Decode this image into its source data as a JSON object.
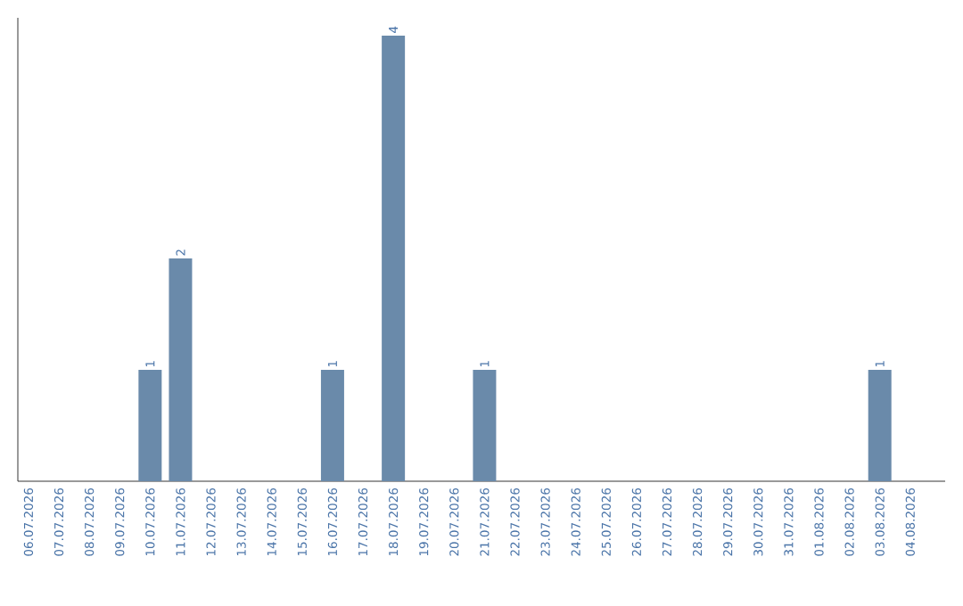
{
  "chart_data": {
    "type": "bar",
    "categories": [
      "06.07.2026",
      "07.07.2026",
      "08.07.2026",
      "09.07.2026",
      "10.07.2026",
      "11.07.2026",
      "12.07.2026",
      "13.07.2026",
      "14.07.2026",
      "15.07.2026",
      "16.07.2026",
      "17.07.2026",
      "18.07.2026",
      "19.07.2026",
      "20.07.2026",
      "21.07.2026",
      "22.07.2026",
      "23.07.2026",
      "24.07.2026",
      "25.07.2026",
      "26.07.2026",
      "27.07.2026",
      "28.07.2026",
      "29.07.2026",
      "30.07.2026",
      "31.07.2026",
      "01.08.2026",
      "02.08.2026",
      "03.08.2026",
      "04.08.2026"
    ],
    "values": [
      0,
      0,
      0,
      0,
      1,
      2,
      0,
      0,
      0,
      0,
      1,
      0,
      4,
      0,
      0,
      1,
      0,
      0,
      0,
      0,
      0,
      0,
      0,
      0,
      0,
      0,
      0,
      0,
      1,
      0
    ],
    "value_labels": [
      null,
      null,
      null,
      null,
      "1",
      "2",
      null,
      null,
      null,
      null,
      "1",
      null,
      "4",
      null,
      null,
      "1",
      null,
      null,
      null,
      null,
      null,
      null,
      null,
      null,
      null,
      null,
      null,
      null,
      "1",
      null
    ],
    "color": "#6a8aaa",
    "ylim": [
      0,
      4.16
    ],
    "tick_labels": "x"
  }
}
